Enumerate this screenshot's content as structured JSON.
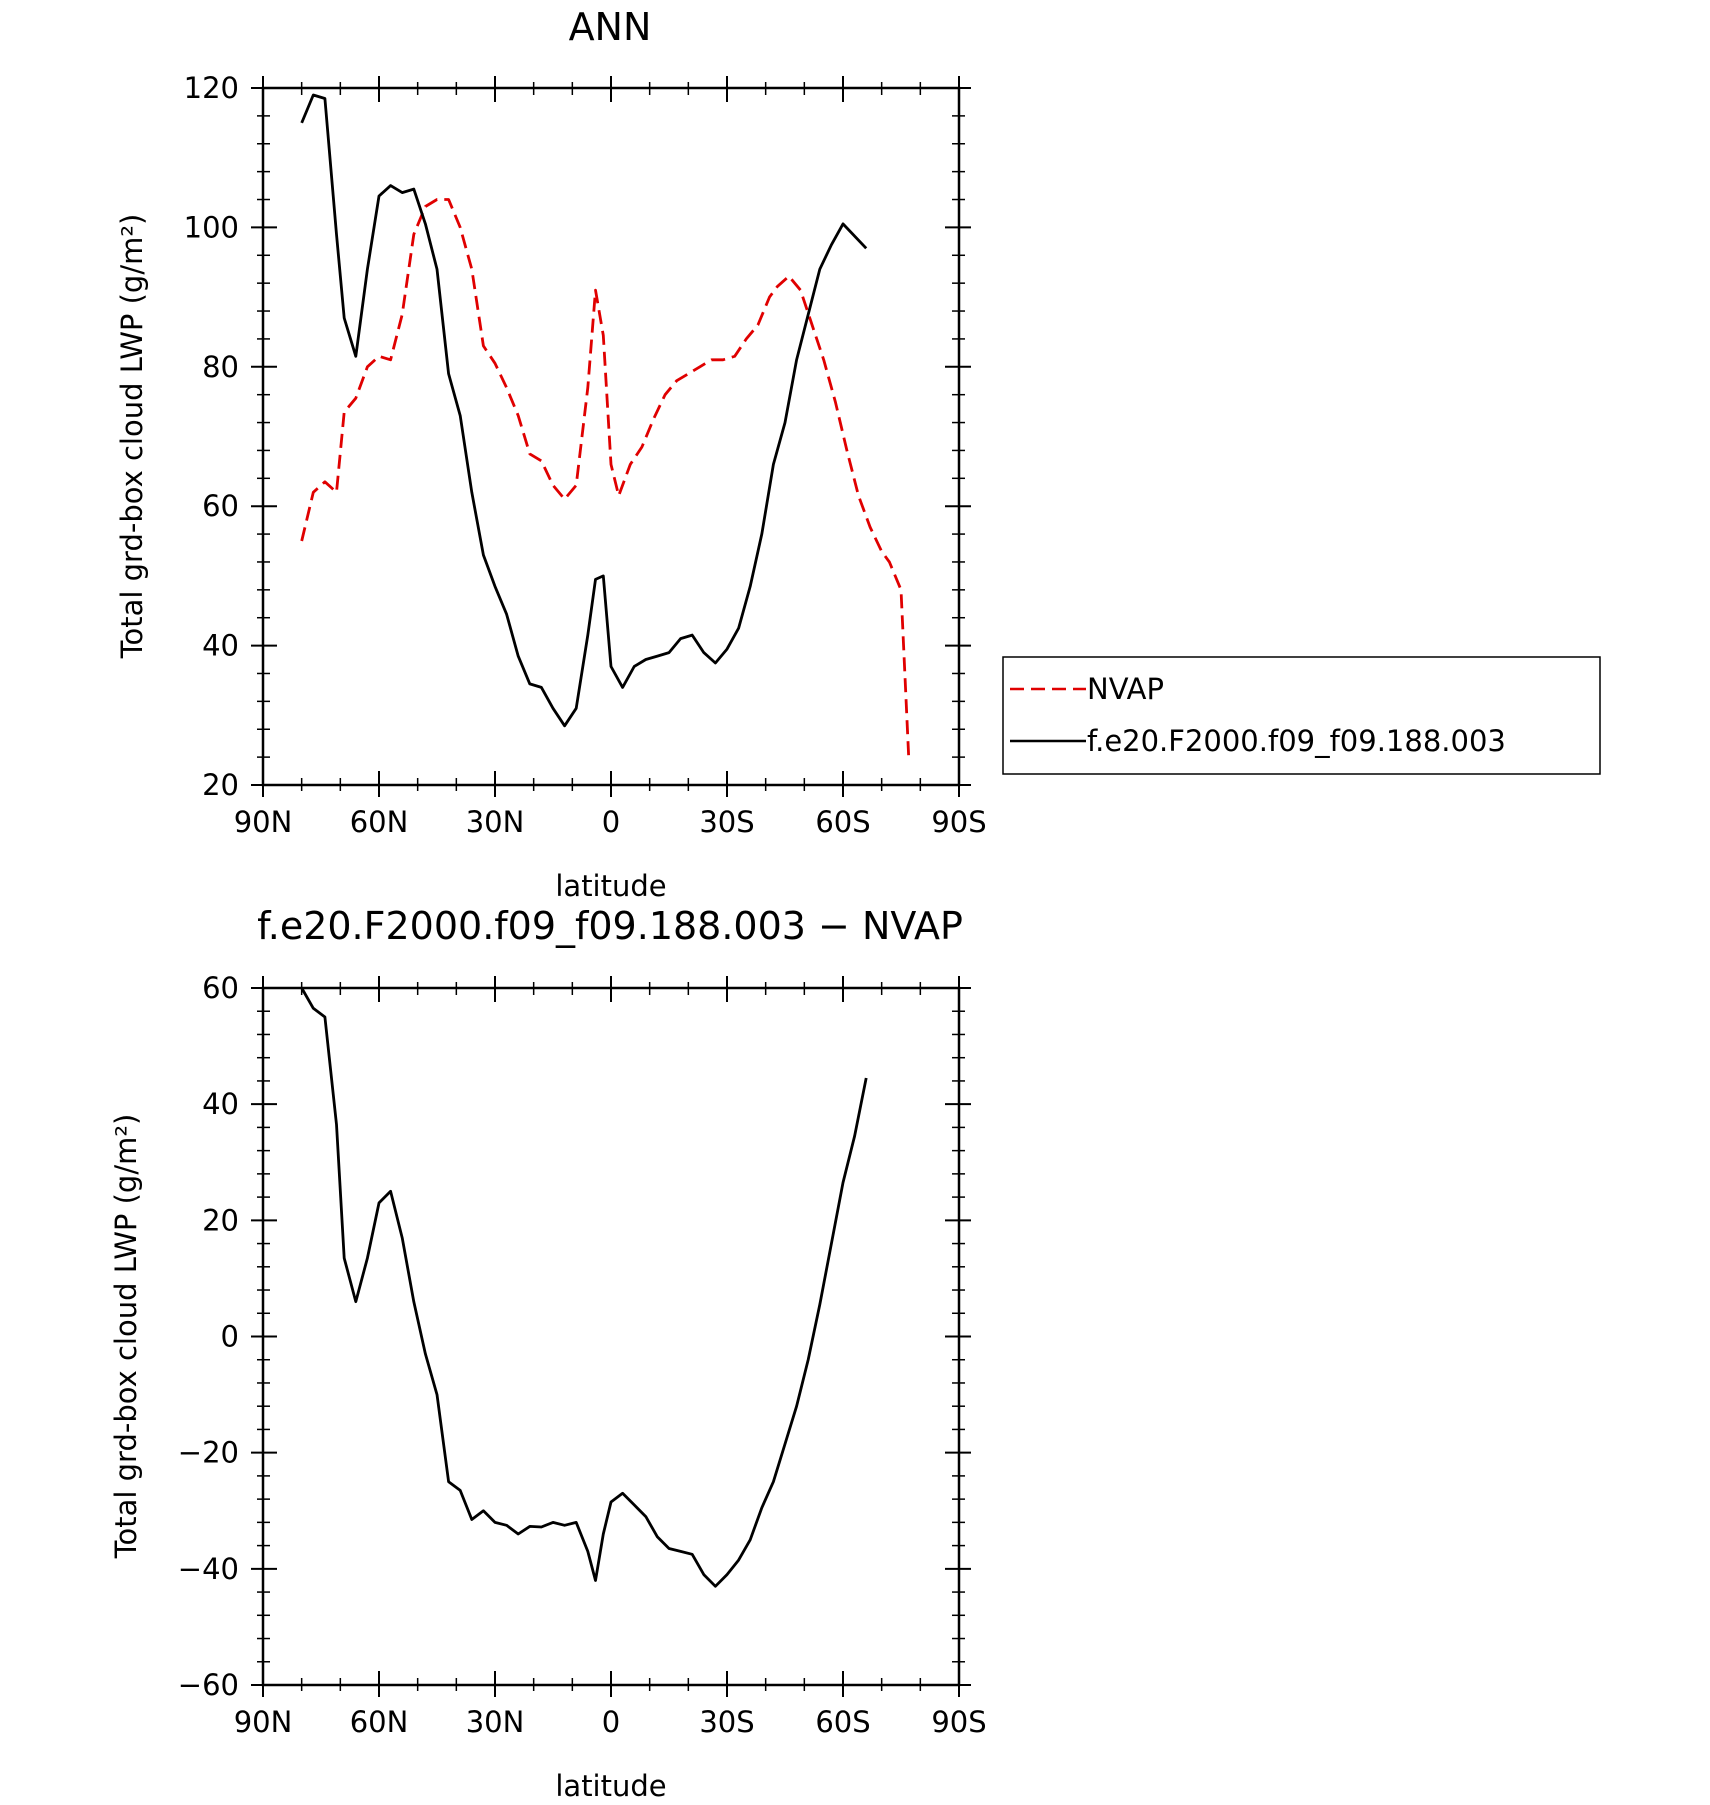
{
  "chart_data": [
    {
      "type": "line",
      "title": "ANN",
      "xlabel": "latitude",
      "ylabel": "Total grd-box cloud LWP (g/m²)",
      "xlim": [
        90,
        -90
      ],
      "ylim": [
        20,
        120
      ],
      "x_ticks": [
        90,
        60,
        30,
        0,
        -30,
        -60,
        -90
      ],
      "x_tick_labels": [
        "90N",
        "60N",
        "30N",
        "0",
        "30S",
        "60S",
        "90S"
      ],
      "y_ticks": [
        20,
        40,
        60,
        80,
        100,
        120
      ],
      "y_tick_labels": [
        "20",
        "40",
        "60",
        "80",
        "100",
        "120"
      ],
      "legend": "right",
      "series": [
        {
          "name": "NVAP",
          "color": "#e00000",
          "dash": "dashed",
          "x": [
            80,
            77,
            74,
            71,
            69,
            66,
            63,
            60,
            57,
            54,
            51,
            48,
            45,
            42,
            39,
            36,
            33,
            30,
            27,
            24,
            21,
            18,
            15,
            12,
            9,
            6,
            4,
            2,
            0,
            -2,
            -5,
            -8,
            -11,
            -14,
            -17,
            -20,
            -23,
            -26,
            -29,
            -32,
            -35,
            -38,
            -41,
            -43,
            -46,
            -49,
            -52,
            -55,
            -58,
            -61,
            -64,
            -67,
            -70,
            -72,
            -75,
            -77
          ],
          "y": [
            55,
            62,
            63.5,
            62,
            73.5,
            75.5,
            80,
            81.5,
            81,
            87.5,
            99,
            103,
            104,
            104,
            100,
            94,
            83,
            80.5,
            77,
            73,
            67.5,
            66.5,
            63,
            61,
            63,
            77,
            91,
            84.5,
            66,
            61.5,
            66,
            68.5,
            72.5,
            76,
            78,
            79,
            80,
            81,
            81,
            81.5,
            84,
            86,
            90,
            91.5,
            93,
            91,
            86,
            81,
            75,
            68,
            61.5,
            57,
            53.5,
            52,
            48,
            24
          ]
        },
        {
          "name": "f.e20.F2000.f09_f09.188.003",
          "color": "#000000",
          "dash": "solid",
          "x": [
            80,
            77,
            74,
            71,
            69,
            66,
            63,
            60,
            57,
            54,
            51,
            48,
            45,
            42,
            39,
            36,
            33,
            30,
            27,
            24,
            21,
            18,
            15,
            12,
            9,
            6,
            4,
            2,
            0,
            -3,
            -6,
            -9,
            -12,
            -15,
            -18,
            -21,
            -24,
            -27,
            -30,
            -33,
            -36,
            -39,
            -42,
            -45,
            -48,
            -51,
            -54,
            -57,
            -60,
            -66
          ],
          "y": [
            115,
            119,
            118.5,
            99,
            87,
            81.5,
            94,
            104.5,
            106,
            105,
            105.5,
            100.5,
            94,
            79,
            73,
            62,
            53,
            48.5,
            44.5,
            38.5,
            34.5,
            34,
            31,
            28.5,
            31,
            41.5,
            49.5,
            50,
            37,
            34,
            37,
            38,
            38.5,
            39,
            41,
            41.5,
            39,
            37.5,
            39.5,
            42.5,
            48.5,
            56,
            66,
            72,
            81,
            87.5,
            94,
            97.5,
            100.5,
            97
          ]
        }
      ]
    },
    {
      "type": "line",
      "title": "f.e20.F2000.f09_f09.188.003 − NVAP",
      "xlabel": "latitude",
      "ylabel": "Total grd-box cloud LWP (g/m²)",
      "xlim": [
        90,
        -90
      ],
      "ylim": [
        -60,
        60
      ],
      "x_ticks": [
        90,
        60,
        30,
        0,
        -30,
        -60,
        -90
      ],
      "x_tick_labels": [
        "90N",
        "60N",
        "30N",
        "0",
        "30S",
        "60S",
        "90S"
      ],
      "y_ticks": [
        -60,
        -40,
        -20,
        0,
        20,
        40,
        60
      ],
      "y_tick_labels": [
        "−60",
        "−40",
        "−20",
        "0",
        "20",
        "40",
        "60"
      ],
      "series": [
        {
          "color": "#000000",
          "dash": "solid",
          "x": [
            80,
            77,
            74,
            71,
            69,
            66,
            63,
            60,
            57,
            54,
            51,
            48,
            45,
            42,
            39,
            36,
            33,
            30,
            27,
            24,
            21,
            18,
            15,
            12,
            9,
            6,
            4,
            2,
            0,
            -3,
            -6,
            -9,
            -12,
            -15,
            -18,
            -21,
            -24,
            -27,
            -30,
            -33,
            -36,
            -39,
            -42,
            -45,
            -48,
            -51,
            -54,
            -57,
            -60,
            -63,
            -66
          ],
          "y": [
            60.5,
            56.5,
            55,
            36.5,
            13.5,
            6,
            13.5,
            23,
            25,
            17,
            6,
            -3,
            -10,
            -25,
            -26.5,
            -31.5,
            -30,
            -32,
            -32.5,
            -34,
            -32.7,
            -32.8,
            -32,
            -32.5,
            -32,
            -37,
            -42,
            -34,
            -28.5,
            -27,
            -29,
            -31,
            -34.5,
            -36.5,
            -37,
            -37.5,
            -41,
            -43,
            -41,
            -38.5,
            -35,
            -29.5,
            -25,
            -18.5,
            -12,
            -4,
            5.5,
            16,
            26.5,
            34.5,
            44.5
          ]
        }
      ]
    }
  ]
}
